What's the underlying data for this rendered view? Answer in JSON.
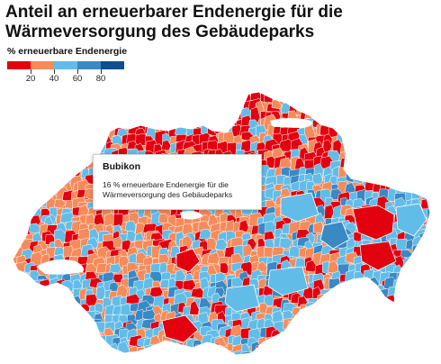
{
  "title": "Anteil an erneuerbarer Endenergie für die Wärmeversorgung des Gebäudeparks",
  "legend": {
    "title": "% erneuerbare Endenergie",
    "colors": [
      "#e3000f",
      "#f58b5a",
      "#62bce8",
      "#3a88c4",
      "#0f4d8f"
    ],
    "ticks": [
      "20",
      "40",
      "60",
      "80"
    ]
  },
  "tooltip": {
    "name": "Bubikon",
    "text": "16 % erneuerbare Endenergie für die Wärmeversorgung des Gebäudeparks"
  },
  "map": {
    "region": "Schweiz",
    "border_color": "#ffffff",
    "dominant_classes": [
      "#f58b5a",
      "#62bce8",
      "#e3000f"
    ]
  }
}
